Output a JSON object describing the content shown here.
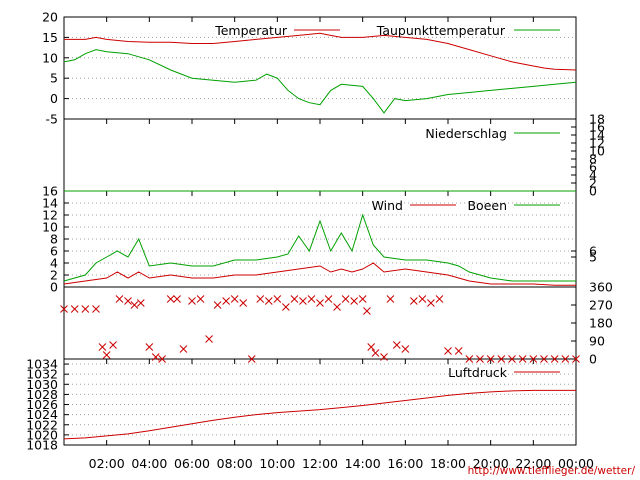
{
  "colors": {
    "red": "#cc0000",
    "green": "#00a000",
    "axis": "#000000",
    "grid": "#a0a0a0"
  },
  "credit": "http://www.tiefflieger.de/wetter/",
  "x_axis": {
    "range_hours": [
      0,
      24
    ],
    "ticks": [
      {
        "h": 2,
        "label": "02:00"
      },
      {
        "h": 4,
        "label": "04:00"
      },
      {
        "h": 6,
        "label": "06:00"
      },
      {
        "h": 8,
        "label": "08:00"
      },
      {
        "h": 10,
        "label": "10:00"
      },
      {
        "h": 12,
        "label": "12:00"
      },
      {
        "h": 14,
        "label": "14:00"
      },
      {
        "h": 16,
        "label": "16:00"
      },
      {
        "h": 18,
        "label": "18:00"
      },
      {
        "h": 20,
        "label": "20:00"
      },
      {
        "h": 22,
        "label": "22:00"
      },
      {
        "h": 24,
        "label": "00:00"
      }
    ]
  },
  "chart_data": [
    {
      "type": "line",
      "panel": "temperature",
      "ylim": [
        -5,
        20
      ],
      "yticks": [
        "-5",
        "0",
        "5",
        "10",
        "15",
        "20"
      ],
      "series": [
        {
          "name": "Temperatur",
          "x": [
            0,
            1,
            1.5,
            2,
            3,
            4,
            5,
            6,
            7,
            8,
            9,
            10,
            11,
            12,
            12.5,
            13,
            14,
            15,
            16,
            17,
            18,
            19,
            20,
            21,
            22,
            22.5,
            23,
            24
          ],
          "values": [
            14.5,
            14.5,
            15,
            14.5,
            14,
            13.8,
            13.8,
            13.5,
            13.5,
            14,
            14.5,
            15,
            15.5,
            16,
            15.5,
            15,
            15,
            15.5,
            15,
            14.5,
            13.5,
            12,
            10.5,
            9,
            8,
            7.5,
            7.2,
            7
          ]
        },
        {
          "name": "Taupunkttemperatur",
          "x": [
            0,
            0.5,
            1,
            1.5,
            2,
            3,
            4,
            5,
            6,
            7,
            8,
            9,
            9.5,
            10,
            10.5,
            11,
            11.5,
            12,
            12.5,
            13,
            14,
            14.5,
            15,
            15.5,
            16,
            17,
            18,
            19,
            20,
            21,
            22,
            23,
            24
          ],
          "values": [
            9,
            9.5,
            11,
            12,
            11.5,
            11,
            9.5,
            7,
            5,
            4.5,
            4,
            4.5,
            6,
            5,
            2,
            0,
            -1,
            -1.5,
            2,
            3.5,
            3,
            0,
            -3.5,
            0,
            -0.5,
            0,
            1,
            1.5,
            2,
            2.5,
            3,
            3.5,
            4
          ]
        }
      ]
    },
    {
      "type": "line",
      "panel": "precipitation",
      "ylim": [
        0,
        18
      ],
      "yticks_right": [
        "0",
        "2",
        "4",
        "6",
        "8",
        "10",
        "12",
        "14",
        "16",
        "18"
      ],
      "series": [
        {
          "name": "Niederschlag",
          "x": [
            0,
            24
          ],
          "values": [
            0,
            0
          ]
        }
      ]
    },
    {
      "type": "line",
      "panel": "wind",
      "ylim": [
        0,
        16
      ],
      "yticks": [
        "0",
        "2",
        "4",
        "6",
        "8",
        "10",
        "12",
        "14",
        "16"
      ],
      "yticks_right": [
        "5",
        "6"
      ],
      "series": [
        {
          "name": "Wind",
          "x": [
            0,
            1,
            2,
            2.5,
            3,
            3.5,
            4,
            5,
            6,
            7,
            8,
            9,
            10,
            11,
            12,
            12.5,
            13,
            13.5,
            14,
            14.5,
            15,
            16,
            17,
            18,
            18.5,
            19,
            20,
            21,
            22,
            23,
            24
          ],
          "values": [
            0.5,
            1,
            1.5,
            2.5,
            1.5,
            2.5,
            1.5,
            2,
            1.5,
            1.5,
            2,
            2,
            2.5,
            3,
            3.5,
            2.5,
            3,
            2.5,
            3,
            4,
            2.5,
            3,
            2.5,
            2,
            1.5,
            1,
            0.5,
            0.5,
            0.5,
            0.3,
            0.3
          ]
        },
        {
          "name": "Boeen",
          "x": [
            0,
            1,
            1.5,
            2,
            2.5,
            3,
            3.5,
            4,
            5,
            6,
            7,
            8,
            9,
            10,
            10.5,
            11,
            11.5,
            12,
            12.5,
            13,
            13.5,
            14,
            14.5,
            15,
            16,
            17,
            18,
            18.5,
            19,
            20,
            21,
            22,
            23,
            24
          ],
          "values": [
            1,
            2,
            4,
            5,
            6,
            5,
            8,
            3.5,
            4,
            3.5,
            3.5,
            4.5,
            4.5,
            5,
            5.5,
            8.5,
            6,
            11,
            6,
            9,
            6,
            12,
            7,
            5,
            4.5,
            4.5,
            4,
            3.5,
            2.5,
            1.5,
            1,
            1,
            1,
            1
          ]
        }
      ]
    },
    {
      "type": "scatter",
      "panel": "wind-direction",
      "ylim": [
        0,
        360
      ],
      "yticks_right": [
        "0",
        "90",
        "180",
        "270",
        "360"
      ],
      "series": [
        {
          "name": "wind-direction",
          "x": [
            0,
            0.5,
            1,
            1.5,
            1.8,
            2,
            2.3,
            2.6,
            3,
            3.3,
            3.6,
            4,
            4.3,
            4.6,
            5,
            5.3,
            5.6,
            6,
            6.4,
            6.8,
            7.2,
            7.6,
            8,
            8.4,
            8.8,
            9.2,
            9.6,
            10,
            10.4,
            10.8,
            11.2,
            11.6,
            12,
            12.4,
            12.8,
            13.2,
            13.6,
            14,
            14.2,
            14.4,
            14.6,
            15,
            15.3,
            15.6,
            16,
            16.4,
            16.8,
            17.2,
            17.6,
            18,
            18.5,
            19,
            19.5,
            20,
            20.5,
            21,
            21.5,
            22,
            22.5,
            23,
            23.5,
            24
          ],
          "values": [
            250,
            250,
            250,
            250,
            60,
            20,
            70,
            300,
            290,
            270,
            280,
            60,
            10,
            0,
            300,
            300,
            50,
            290,
            300,
            100,
            270,
            290,
            300,
            280,
            0,
            300,
            290,
            300,
            260,
            300,
            290,
            300,
            280,
            300,
            260,
            300,
            290,
            300,
            240,
            60,
            30,
            10,
            300,
            70,
            50,
            290,
            300,
            280,
            300,
            40,
            40,
            0,
            0,
            0,
            0,
            0,
            0,
            0,
            0,
            0,
            0,
            0
          ]
        }
      ]
    },
    {
      "type": "line",
      "panel": "pressure",
      "ylim": [
        1018,
        1035
      ],
      "yticks": [
        "1018",
        "1020",
        "1022",
        "1024",
        "1026",
        "1028",
        "1030",
        "1032",
        "1034"
      ],
      "series": [
        {
          "name": "Luftdruck",
          "x": [
            0,
            1,
            2,
            3,
            4,
            5,
            6,
            7,
            8,
            9,
            10,
            11,
            12,
            13,
            14,
            15,
            16,
            17,
            18,
            19,
            20,
            21,
            22,
            23,
            24
          ],
          "values": [
            1019.2,
            1019.4,
            1019.8,
            1020.2,
            1020.8,
            1021.5,
            1022.2,
            1022.9,
            1023.5,
            1024.0,
            1024.4,
            1024.7,
            1025.0,
            1025.4,
            1025.8,
            1026.3,
            1026.8,
            1027.3,
            1027.8,
            1028.2,
            1028.5,
            1028.7,
            1028.8,
            1028.8,
            1028.8
          ]
        }
      ]
    }
  ]
}
